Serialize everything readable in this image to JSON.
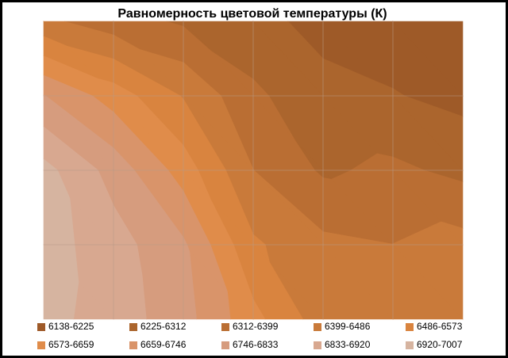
{
  "chart_data": {
    "type": "contour",
    "title": "Равномерность  цветовой температуры (К)",
    "z": [
      [
        6420,
        6350,
        6300,
        6250,
        6200,
        6180,
        6140
      ],
      [
        6750,
        6620,
        6480,
        6330,
        6250,
        6230,
        6200
      ],
      [
        6950,
        6800,
        6620,
        6400,
        6300,
        6330,
        6290
      ],
      [
        6960,
        6870,
        6760,
        6500,
        6420,
        6400,
        6430
      ],
      [
        6950,
        6880,
        6780,
        6600,
        6440,
        6420,
        6480
      ]
    ],
    "series": [
      {
        "name": "6138-6225",
        "range": [
          6138,
          6225
        ],
        "color": "#9e5a28"
      },
      {
        "name": "6225-6312",
        "range": [
          6225,
          6312
        ],
        "color": "#ab652d"
      },
      {
        "name": "6312-6399",
        "range": [
          6312,
          6399
        ],
        "color": "#ba6e33"
      },
      {
        "name": "6399-6486",
        "range": [
          6399,
          6486
        ],
        "color": "#c97a3a"
      },
      {
        "name": "6486-6573",
        "range": [
          6486,
          6573
        ],
        "color": "#d9843f"
      },
      {
        "name": "6573-6659",
        "range": [
          6573,
          6659
        ],
        "color": "#e08c4a"
      },
      {
        "name": "6659-6746",
        "range": [
          6659,
          6746
        ],
        "color": "#d9946a"
      },
      {
        "name": "6746-6833",
        "range": [
          6746,
          6833
        ],
        "color": "#d69c7e"
      },
      {
        "name": "6833-6920",
        "range": [
          6833,
          6920
        ],
        "color": "#d8a890"
      },
      {
        "name": "6920-7007",
        "range": [
          6920,
          7007
        ],
        "color": "#d6b4a0"
      }
    ],
    "grid": true
  }
}
